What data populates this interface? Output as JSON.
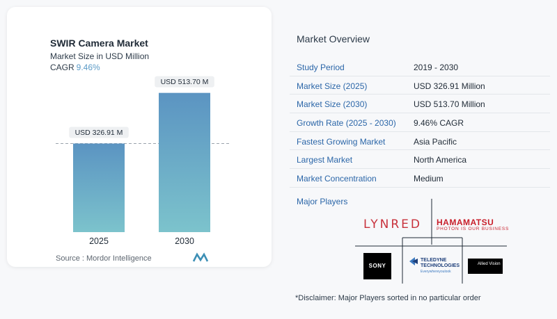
{
  "chart_data": {
    "type": "bar",
    "title": "SWIR Camera Market",
    "subtitle": "Market Size in USD Million",
    "cagr_label": "CAGR",
    "cagr_value": "9.46%",
    "categories": [
      "2025",
      "2030"
    ],
    "values": [
      326.91,
      513.7
    ],
    "value_labels": [
      "USD 326.91 M",
      "USD 513.70 M"
    ],
    "ylim": [
      0,
      600
    ],
    "colors": [
      "#5b94c2",
      "#7cc3cc"
    ],
    "source": "Source :  Mordor Intelligence"
  },
  "overview": {
    "title": "Market Overview",
    "rows": [
      {
        "key": "Study Period",
        "value": "2019 - 2030"
      },
      {
        "key": "Market Size (2025)",
        "value": "USD 326.91 Million"
      },
      {
        "key": "Market Size (2030)",
        "value": "USD 513.70 Million"
      },
      {
        "key": "Growth Rate (2025 - 2030)",
        "value": "9.46% CAGR"
      },
      {
        "key": "Fastest Growing Market",
        "value": "Asia Pacific"
      },
      {
        "key": "Largest Market",
        "value": "North America"
      },
      {
        "key": "Market Concentration",
        "value": "Medium"
      }
    ]
  },
  "players": {
    "title": "Major Players",
    "lynred": "LYNRED",
    "hamamatsu": "HAMAMATSU",
    "hamamatsu_tagline": "PHOTON IS OUR BUSINESS",
    "sony": "SONY",
    "teledyne_line1": "TELEDYNE",
    "teledyne_line2": "TECHNOLOGIES",
    "teledyne_tagline": "Everywhereyoulook",
    "allied_line1": "Allied Vision"
  },
  "disclaimer": "*Disclaimer: Major Players sorted in no particular order"
}
